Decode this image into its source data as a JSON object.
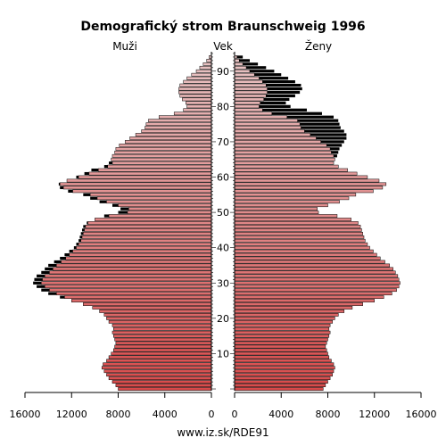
{
  "chart_data": {
    "type": "bar",
    "orientation": "horizontal-pyramid",
    "title": "Demografický strom Braunschweig 1996",
    "left_label": "Muži",
    "center_label": "Vek",
    "right_label": "Ženy",
    "footer": "www.iz.sk/RDE91",
    "xlim": [
      0,
      16000
    ],
    "x_ticks_left": [
      "16000",
      "12000",
      "8000",
      "4000",
      "0"
    ],
    "x_ticks_right": [
      "0",
      "4000",
      "8000",
      "12000",
      "16000"
    ],
    "x_tick_values": [
      16000,
      12000,
      8000,
      4000,
      0
    ],
    "age_range": [
      0,
      95
    ],
    "age_ticks": [
      10,
      20,
      30,
      40,
      50,
      60,
      70,
      80,
      90
    ],
    "age_tick_labels": [
      "10",
      "20",
      "30",
      "40",
      "50",
      "60",
      "70",
      "80",
      "90"
    ],
    "colors": {
      "male_young": "#d94a4a",
      "male_old": "#e8c4c4",
      "female_young": "#d94a4a",
      "female_old": "#e8c4c4",
      "surplus": "#000000"
    },
    "series": [
      {
        "name": "Muži",
        "values": [
          8000,
          8200,
          8500,
          8800,
          9000,
          9200,
          9400,
          9300,
          9000,
          8800,
          8600,
          8400,
          8300,
          8200,
          8300,
          8400,
          8500,
          8400,
          8500,
          8800,
          9000,
          9200,
          9600,
          10200,
          11000,
          12000,
          13000,
          14000,
          14600,
          15000,
          15300,
          15200,
          15000,
          14600,
          14300,
          14000,
          13500,
          13000,
          12600,
          12200,
          11800,
          11600,
          11400,
          11300,
          11200,
          11100,
          11000,
          10700,
          10000,
          9200,
          8000,
          7800,
          8500,
          9600,
          10400,
          11000,
          12300,
          13000,
          13100,
          12400,
          11600,
          10900,
          10300,
          9200,
          8800,
          8600,
          8500,
          8300,
          8200,
          7900,
          7400,
          7000,
          6500,
          6000,
          5700,
          5600,
          5400,
          4500,
          3200,
          2400,
          2100,
          2200,
          2500,
          2700,
          2800,
          2800,
          2700,
          2400,
          2100,
          1700,
          1300,
          1000,
          700,
          400,
          200
        ]
      },
      {
        "name": "Ženy",
        "values": [
          7600,
          7800,
          8000,
          8200,
          8400,
          8500,
          8600,
          8500,
          8300,
          8100,
          8000,
          7900,
          7800,
          7900,
          8000,
          8100,
          8200,
          8100,
          8200,
          8400,
          8600,
          8900,
          9400,
          10100,
          11000,
          12000,
          12800,
          13500,
          13900,
          14100,
          14200,
          14100,
          14000,
          13800,
          13600,
          13300,
          12900,
          12500,
          12200,
          11900,
          11600,
          11400,
          11200,
          11100,
          11000,
          10900,
          10800,
          10600,
          10000,
          8800,
          7200,
          7100,
          8000,
          9000,
          9800,
          10400,
          11900,
          12700,
          13000,
          12400,
          11400,
          10500,
          9700,
          8900,
          8500,
          8600,
          8800,
          8900,
          9000,
          9200,
          9400,
          9600,
          9600,
          9400,
          9100,
          9000,
          8900,
          8500,
          7500,
          6200,
          4800,
          4400,
          4700,
          5200,
          5600,
          5800,
          5700,
          5200,
          4600,
          4000,
          3400,
          2700,
          2000,
          1300,
          700
        ]
      }
    ],
    "base_values": {
      "male": [
        8000,
        8200,
        8500,
        8800,
        9000,
        9200,
        9400,
        9300,
        9000,
        8800,
        8600,
        8400,
        8300,
        8200,
        8300,
        8400,
        8500,
        8400,
        8500,
        8800,
        9000,
        9200,
        9600,
        10200,
        11000,
        12000,
        12600,
        13300,
        13900,
        14300,
        14600,
        14500,
        14300,
        13900,
        13600,
        13300,
        12900,
        12500,
        12200,
        11900,
        11600,
        11400,
        11200,
        11100,
        11000,
        10900,
        10800,
        10600,
        10000,
        8800,
        7200,
        7100,
        8000,
        9000,
        9800,
        10400,
        11900,
        12700,
        13000,
        12400,
        11400,
        10500,
        9700,
        8900,
        8500,
        8600,
        8500,
        8300,
        8200,
        7900,
        7400,
        7000,
        6500,
        6000,
        5700,
        5600,
        5400,
        4500,
        3200,
        2400,
        2100,
        2200,
        2500,
        2700,
        2800,
        2800,
        2700,
        2400,
        2100,
        1700,
        1300,
        1000,
        700,
        400,
        200
      ],
      "female": [
        7600,
        7800,
        8000,
        8200,
        8400,
        8500,
        8600,
        8500,
        8300,
        8100,
        8000,
        7900,
        7800,
        7900,
        8000,
        8100,
        8200,
        8100,
        8200,
        8400,
        8600,
        8900,
        9400,
        10100,
        11000,
        12000,
        12800,
        13500,
        13900,
        14100,
        14200,
        14100,
        14000,
        13800,
        13600,
        13300,
        12900,
        12500,
        12200,
        11900,
        11600,
        11400,
        11200,
        11100,
        11000,
        10900,
        10800,
        10600,
        10000,
        8800,
        7200,
        7100,
        8000,
        9000,
        9800,
        10400,
        11900,
        12700,
        13000,
        12400,
        11400,
        10500,
        9700,
        8900,
        8500,
        8600,
        8500,
        8300,
        8200,
        7900,
        7400,
        7000,
        6500,
        6000,
        5700,
        5600,
        5400,
        4500,
        3200,
        2400,
        2100,
        2200,
        2500,
        2700,
        2800,
        2800,
        2700,
        2400,
        2100,
        1700,
        1300,
        1000,
        700,
        400,
        200
      ]
    },
    "grid": false,
    "legend": "none"
  }
}
